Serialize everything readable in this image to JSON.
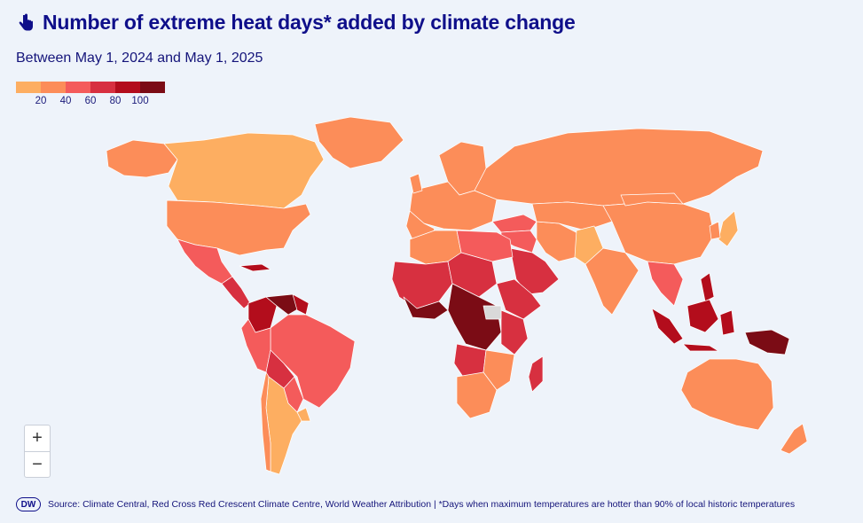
{
  "header": {
    "title": "Number of extreme heat days* added by climate change",
    "subtitle": "Between May 1, 2024 and May 1, 2025"
  },
  "legend": {
    "colors": [
      "#fdae61",
      "#fc8d59",
      "#f45b5b",
      "#d73040",
      "#b30d1c",
      "#7b0c15"
    ],
    "ticks": [
      "20",
      "40",
      "60",
      "80",
      "100"
    ]
  },
  "map": {
    "ocean_color": "#eef3fa",
    "no_data_color": "#d9d9d9"
  },
  "zoom": {
    "zoom_in": "+",
    "zoom_out": "−"
  },
  "footer": {
    "logo_text": "DW",
    "source": "Source: Climate Central, Red Cross Red Crescent Climate Centre, World Weather Attribution | *Days when maximum temperatures are hotter than 90% of local historic temperatures"
  }
}
